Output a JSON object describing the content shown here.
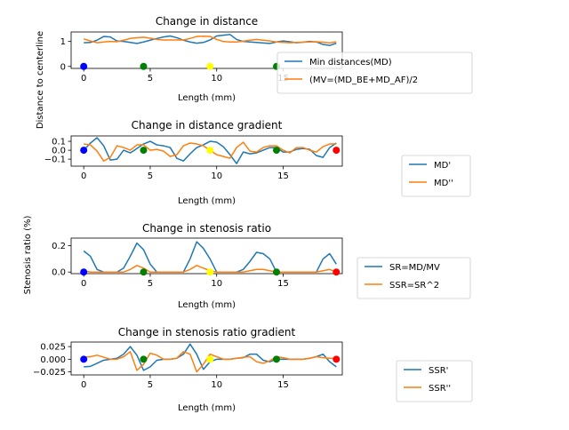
{
  "colors": {
    "blue": "#1f77b4",
    "orange": "#ff7f0e",
    "marker_blue": "#0000ff",
    "marker_green": "#008000",
    "marker_yellow": "#ffff00",
    "marker_red": "#ff0000"
  },
  "chart_data": [
    {
      "type": "line",
      "title": "Change in distance",
      "xlabel": "Length (mm)",
      "ylabel": "Distance to centerline",
      "xlim": [
        -0.95,
        19.45
      ],
      "ylim": [
        -0.08,
        1.38
      ],
      "xticks": [
        0,
        5,
        10,
        15
      ],
      "yticks": [
        0,
        1
      ],
      "x": [
        0,
        0.5,
        1,
        1.5,
        2,
        2.5,
        3,
        3.5,
        4,
        4.5,
        5,
        5.5,
        6,
        6.5,
        7,
        7.5,
        8,
        8.5,
        9,
        9.5,
        10,
        10.5,
        11,
        11.5,
        12,
        12.5,
        13,
        13.5,
        14,
        14.5,
        15,
        15.5,
        16,
        16.5,
        17,
        17.5,
        18,
        18.5,
        19
      ],
      "series": [
        {
          "name": "Min distances(MD)",
          "color": "#1f77b4",
          "values": [
            0.95,
            0.96,
            1.05,
            1.2,
            1.18,
            1.02,
            1.0,
            0.96,
            0.92,
            0.98,
            1.05,
            1.12,
            1.18,
            1.22,
            1.15,
            1.05,
            0.98,
            0.93,
            0.96,
            1.06,
            1.22,
            1.25,
            1.28,
            1.08,
            1.0,
            0.98,
            0.96,
            0.94,
            0.92,
            0.98,
            1.02,
            0.99,
            0.95,
            0.97,
            1.0,
            0.98,
            0.88,
            0.84,
            0.93
          ]
        },
        {
          "name": "(MV=(MD_BE+MD_AF)/2",
          "color": "#ff7f0e",
          "values": [
            1.1,
            1.02,
            0.95,
            0.98,
            1.0,
            0.99,
            1.05,
            1.12,
            1.15,
            1.17,
            1.13,
            1.08,
            1.06,
            1.06,
            1.06,
            1.06,
            1.12,
            1.2,
            1.21,
            1.2,
            1.08,
            1.0,
            0.98,
            0.98,
            1.01,
            1.05,
            1.08,
            1.05,
            1.02,
            0.98,
            0.96,
            0.95,
            0.96,
            0.97,
            0.98,
            0.99,
            0.97,
            0.94,
            0.99
          ]
        }
      ],
      "markers": [
        {
          "x": 0,
          "y": 0,
          "color": "#0000ff"
        },
        {
          "x": 4.5,
          "y": 0,
          "color": "#008000"
        },
        {
          "x": 9.5,
          "y": 0,
          "color": "#ffff00"
        },
        {
          "x": 14.5,
          "y": 0,
          "color": "#008000"
        }
      ],
      "legend": [
        "Min distances(MD)",
        "(MV=(MD_BE+MD_AF)/2"
      ]
    },
    {
      "type": "line",
      "title": "Change in distance gradient",
      "xlabel": "Length (mm)",
      "ylabel": "",
      "xlim": [
        -0.95,
        19.45
      ],
      "ylim": [
        -0.178,
        0.16
      ],
      "xticks": [
        0,
        5,
        10,
        15
      ],
      "yticks": [
        -0.1,
        0.0,
        0.1
      ],
      "x": [
        0,
        0.5,
        1,
        1.5,
        2,
        2.5,
        3,
        3.5,
        4,
        4.5,
        5,
        5.5,
        6,
        6.5,
        7,
        7.5,
        8,
        8.5,
        9,
        9.5,
        10,
        10.5,
        11,
        11.5,
        12,
        12.5,
        13,
        13.5,
        14,
        14.5,
        15,
        15.5,
        16,
        16.5,
        17,
        17.5,
        18,
        18.5,
        19
      ],
      "series": [
        {
          "name": "MD'",
          "color": "#1f77b4",
          "values": [
            0.0,
            0.08,
            0.14,
            0.05,
            -0.11,
            -0.1,
            0.0,
            -0.03,
            0.02,
            0.07,
            0.1,
            0.06,
            0.05,
            0.03,
            -0.09,
            -0.12,
            -0.04,
            0.03,
            0.06,
            0.1,
            0.09,
            0.04,
            -0.05,
            -0.15,
            -0.02,
            -0.04,
            -0.03,
            0.0,
            0.03,
            0.03,
            -0.02,
            -0.02,
            0.01,
            0.02,
            0.01,
            -0.06,
            -0.08,
            0.03,
            0.08
          ]
        },
        {
          "name": "MD''",
          "color": "#ff7f0e",
          "values": [
            0.07,
            0.06,
            -0.01,
            -0.12,
            -0.08,
            0.05,
            0.03,
            0.0,
            0.06,
            0.06,
            0.0,
            0.01,
            -0.01,
            -0.07,
            -0.05,
            0.05,
            0.08,
            0.07,
            0.05,
            0.0,
            -0.05,
            -0.07,
            -0.09,
            0.03,
            0.09,
            -0.01,
            -0.02,
            0.03,
            0.05,
            0.05,
            0.0,
            -0.03,
            0.03,
            0.03,
            0.0,
            -0.02,
            0.04,
            0.07,
            0.07
          ]
        }
      ],
      "markers": [
        {
          "x": 0,
          "y": 0,
          "color": "#0000ff"
        },
        {
          "x": 4.5,
          "y": 0,
          "color": "#008000"
        },
        {
          "x": 9.5,
          "y": 0,
          "color": "#ffff00"
        },
        {
          "x": 14.5,
          "y": 0,
          "color": "#008000"
        },
        {
          "x": 19,
          "y": 0,
          "color": "#ff0000"
        }
      ],
      "legend": [
        "MD'",
        "MD''"
      ]
    },
    {
      "type": "line",
      "title": "Change in stenosis ratio",
      "xlabel": "Length (mm)",
      "ylabel": "Stenosis ratio (%)",
      "xlim": [
        -0.95,
        19.45
      ],
      "ylim": [
        -0.012,
        0.258
      ],
      "xticks": [
        0,
        5,
        10,
        15
      ],
      "yticks": [
        0.0,
        0.2
      ],
      "x": [
        0,
        0.5,
        1,
        1.5,
        2,
        2.5,
        3,
        3.5,
        4,
        4.5,
        5,
        5.5,
        6,
        6.5,
        7,
        7.5,
        8,
        8.5,
        9,
        9.5,
        10,
        10.5,
        11,
        11.5,
        12,
        12.5,
        13,
        13.5,
        14,
        14.5,
        15,
        15.5,
        16,
        16.5,
        17,
        17.5,
        18,
        18.5,
        19
      ],
      "series": [
        {
          "name": "SR=MD/MV",
          "color": "#1f77b4",
          "values": [
            0.16,
            0.12,
            0.02,
            0.0,
            0.0,
            0.0,
            0.03,
            0.12,
            0.22,
            0.17,
            0.06,
            0.0,
            0.0,
            0.0,
            0.0,
            0.0,
            0.1,
            0.23,
            0.18,
            0.1,
            0.0,
            0.0,
            0.0,
            0.0,
            0.02,
            0.08,
            0.15,
            0.14,
            0.1,
            0.0,
            0.0,
            0.0,
            0.0,
            0.0,
            0.0,
            0.0,
            0.1,
            0.14,
            0.06
          ]
        },
        {
          "name": "SSR=SR^2",
          "color": "#ff7f0e",
          "values": [
            0.01,
            0.0,
            0.0,
            0.0,
            0.0,
            0.0,
            0.0,
            0.02,
            0.05,
            0.03,
            0.0,
            0.0,
            0.0,
            0.0,
            0.0,
            0.0,
            0.02,
            0.05,
            0.03,
            0.01,
            0.0,
            0.0,
            0.0,
            0.0,
            0.0,
            0.01,
            0.02,
            0.02,
            0.01,
            0.0,
            0.0,
            0.0,
            0.0,
            0.0,
            0.0,
            0.0,
            0.01,
            0.02,
            0.0
          ]
        }
      ],
      "markers": [
        {
          "x": 0,
          "y": 0,
          "color": "#0000ff"
        },
        {
          "x": 4.5,
          "y": 0,
          "color": "#008000"
        },
        {
          "x": 9.5,
          "y": 0,
          "color": "#ffff00"
        },
        {
          "x": 14.5,
          "y": 0,
          "color": "#008000"
        },
        {
          "x": 19,
          "y": 0,
          "color": "#ff0000"
        }
      ],
      "legend": [
        "SR=MD/MV",
        "SSR=SR^2"
      ]
    },
    {
      "type": "line",
      "title": "Change in stenosis ratio gradient",
      "xlabel": "Length (mm)",
      "ylabel": "",
      "xlim": [
        -0.95,
        19.45
      ],
      "ylim": [
        -0.031,
        0.034
      ],
      "xticks": [
        0,
        5,
        10,
        15
      ],
      "yticks": [
        -0.025,
        0.0,
        0.025
      ],
      "x": [
        0,
        0.5,
        1,
        1.5,
        2,
        2.5,
        3,
        3.5,
        4,
        4.5,
        5,
        5.5,
        6,
        6.5,
        7,
        7.5,
        8,
        8.5,
        9,
        9.5,
        10,
        10.5,
        11,
        11.5,
        12,
        12.5,
        13,
        13.5,
        14,
        14.5,
        15,
        15.5,
        16,
        16.5,
        17,
        17.5,
        18,
        18.5,
        19
      ],
      "series": [
        {
          "name": "SSR'",
          "color": "#1f77b4",
          "values": [
            -0.015,
            -0.014,
            -0.008,
            -0.002,
            0.0,
            0.002,
            0.01,
            0.025,
            0.008,
            -0.022,
            -0.015,
            -0.002,
            0.0,
            0.0,
            0.002,
            0.01,
            0.03,
            0.01,
            -0.02,
            -0.005,
            0.0,
            0.0,
            0.0,
            0.002,
            0.003,
            0.01,
            0.01,
            -0.002,
            -0.005,
            0.0,
            0.0,
            0.0,
            0.0,
            0.0,
            0.002,
            0.005,
            0.01,
            -0.005,
            -0.015
          ]
        },
        {
          "name": "SSR''",
          "color": "#ff7f0e",
          "values": [
            0.004,
            0.005,
            0.008,
            0.004,
            0.0,
            0.0,
            0.005,
            0.015,
            -0.022,
            -0.01,
            0.012,
            0.008,
            0.0,
            0.0,
            0.002,
            0.015,
            0.01,
            -0.025,
            -0.01,
            0.01,
            0.005,
            0.0,
            0.0,
            0.002,
            0.004,
            0.005,
            -0.005,
            -0.008,
            -0.003,
            0.005,
            0.003,
            0.0,
            0.0,
            0.0,
            0.002,
            0.005,
            0.003,
            0.002,
            0.001
          ]
        }
      ],
      "markers": [
        {
          "x": 0,
          "y": 0,
          "color": "#0000ff"
        },
        {
          "x": 4.5,
          "y": 0,
          "color": "#008000"
        },
        {
          "x": 9.5,
          "y": 0,
          "color": "#ffff00"
        },
        {
          "x": 14.5,
          "y": 0,
          "color": "#008000"
        },
        {
          "x": 19,
          "y": 0,
          "color": "#ff0000"
        }
      ],
      "legend": [
        "SSR'",
        "SSR''"
      ]
    }
  ]
}
